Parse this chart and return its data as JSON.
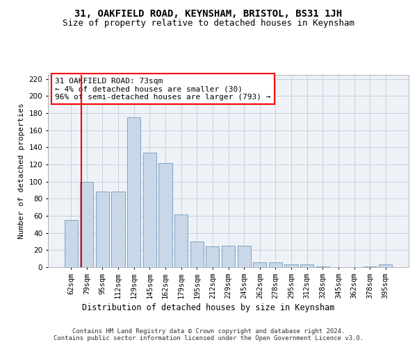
{
  "title": "31, OAKFIELD ROAD, KEYNSHAM, BRISTOL, BS31 1JH",
  "subtitle": "Size of property relative to detached houses in Keynsham",
  "xlabel": "Distribution of detached houses by size in Keynsham",
  "ylabel": "Number of detached properties",
  "categories": [
    "62sqm",
    "79sqm",
    "95sqm",
    "112sqm",
    "129sqm",
    "145sqm",
    "162sqm",
    "179sqm",
    "195sqm",
    "212sqm",
    "229sqm",
    "245sqm",
    "262sqm",
    "278sqm",
    "295sqm",
    "312sqm",
    "328sqm",
    "345sqm",
    "362sqm",
    "378sqm",
    "395sqm"
  ],
  "values": [
    55,
    100,
    88,
    88,
    175,
    134,
    122,
    62,
    30,
    24,
    25,
    25,
    6,
    6,
    3,
    3,
    1,
    0,
    0,
    1,
    3
  ],
  "bar_color": "#c8d8e8",
  "bar_edge_color": "#5a8ab0",
  "grid_color": "#c0ccd8",
  "background_color": "#eef2f7",
  "annotation_text": "31 OAKFIELD ROAD: 73sqm\n← 4% of detached houses are smaller (30)\n96% of semi-detached houses are larger (793) →",
  "annotation_box_color": "white",
  "annotation_box_edge_color": "red",
  "vline_color": "red",
  "ylim": [
    0,
    225
  ],
  "yticks": [
    0,
    20,
    40,
    60,
    80,
    100,
    120,
    140,
    160,
    180,
    200,
    220
  ],
  "footer": "Contains HM Land Registry data © Crown copyright and database right 2024.\nContains public sector information licensed under the Open Government Licence v3.0.",
  "title_fontsize": 10,
  "subtitle_fontsize": 9,
  "xlabel_fontsize": 8.5,
  "ylabel_fontsize": 8,
  "tick_fontsize": 7.5,
  "annotation_fontsize": 8,
  "footer_fontsize": 6.5
}
